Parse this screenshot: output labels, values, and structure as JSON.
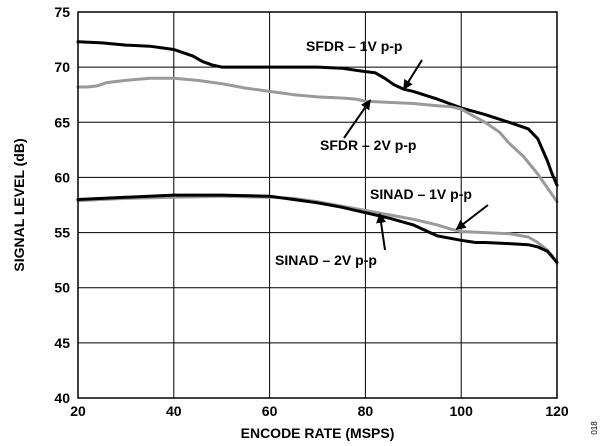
{
  "chart_data": {
    "type": "line",
    "xlabel": "ENCODE RATE (MSPS)",
    "ylabel": "SIGNAL LEVEL (dB)",
    "xlim": [
      20,
      120
    ],
    "ylim": [
      40,
      75
    ],
    "xticks": [
      20,
      40,
      60,
      80,
      100,
      120
    ],
    "yticks": [
      40,
      45,
      50,
      55,
      60,
      65,
      70,
      75
    ],
    "grid": true,
    "series": [
      {
        "name": "SFDR – 1V p-p",
        "color": "#000000",
        "x": [
          20,
          25,
          30,
          35,
          40,
          42,
          44,
          46,
          48,
          50,
          55,
          60,
          65,
          70,
          75,
          80,
          82,
          84,
          86,
          88,
          90,
          95,
          100,
          105,
          110,
          112,
          114,
          116,
          117,
          118,
          119,
          120
        ],
        "y": [
          72.3,
          72.2,
          72.0,
          71.9,
          71.6,
          71.3,
          71.0,
          70.5,
          70.2,
          70.0,
          70.0,
          70.0,
          70.0,
          70.0,
          69.9,
          69.6,
          69.5,
          69.0,
          68.4,
          68.0,
          67.8,
          67.1,
          66.3,
          65.7,
          65.0,
          64.7,
          64.4,
          63.5,
          62.5,
          61.5,
          60.3,
          59.3
        ]
      },
      {
        "name": "SFDR – 2V p-p",
        "color": "#9a9a9a",
        "x": [
          20,
          22,
          24,
          26,
          30,
          35,
          40,
          45,
          50,
          55,
          60,
          65,
          70,
          75,
          78,
          80,
          85,
          90,
          95,
          98,
          100,
          102,
          105,
          108,
          110,
          113,
          116,
          120
        ],
        "y": [
          68.2,
          68.2,
          68.3,
          68.6,
          68.8,
          69.0,
          69.0,
          68.8,
          68.5,
          68.1,
          67.8,
          67.5,
          67.3,
          67.2,
          67.1,
          66.9,
          66.8,
          66.7,
          66.5,
          66.4,
          66.2,
          65.7,
          65.0,
          64.1,
          63.1,
          61.9,
          60.3,
          57.8
        ]
      },
      {
        "name": "SINAD – 1V p-p",
        "color": "#9a9a9a",
        "x": [
          20,
          30,
          40,
          50,
          60,
          65,
          70,
          75,
          80,
          85,
          90,
          95,
          98,
          100,
          105,
          110,
          114,
          116,
          118,
          119,
          120
        ],
        "y": [
          57.9,
          58.1,
          58.2,
          58.3,
          58.2,
          58.1,
          57.8,
          57.4,
          57.0,
          56.6,
          56.2,
          55.7,
          55.3,
          55.1,
          55.0,
          54.9,
          54.6,
          54.1,
          53.4,
          52.9,
          52.2
        ]
      },
      {
        "name": "SINAD – 2V p-p",
        "color": "#000000",
        "x": [
          20,
          30,
          40,
          50,
          60,
          65,
          70,
          75,
          80,
          85,
          90,
          93,
          95,
          100,
          103,
          105,
          110,
          114,
          116,
          118,
          119,
          120
        ],
        "y": [
          58.0,
          58.2,
          58.4,
          58.4,
          58.3,
          58.0,
          57.7,
          57.3,
          56.8,
          56.3,
          55.7,
          55.1,
          54.7,
          54.3,
          54.1,
          54.1,
          54.0,
          53.9,
          53.7,
          53.3,
          52.8,
          52.3
        ]
      }
    ],
    "annotations": [
      {
        "text": "SFDR – 1V p-p",
        "point_to": [
          88,
          68.0
        ]
      },
      {
        "text": "SFDR – 2V p-p",
        "point_to": [
          81,
          67.0
        ]
      },
      {
        "text": "SINAD – 1V p-p",
        "point_to": [
          99,
          55.3
        ]
      },
      {
        "text": "SINAD – 2V p-p",
        "point_to": [
          83,
          56.7
        ]
      }
    ],
    "figure_id": "018"
  }
}
